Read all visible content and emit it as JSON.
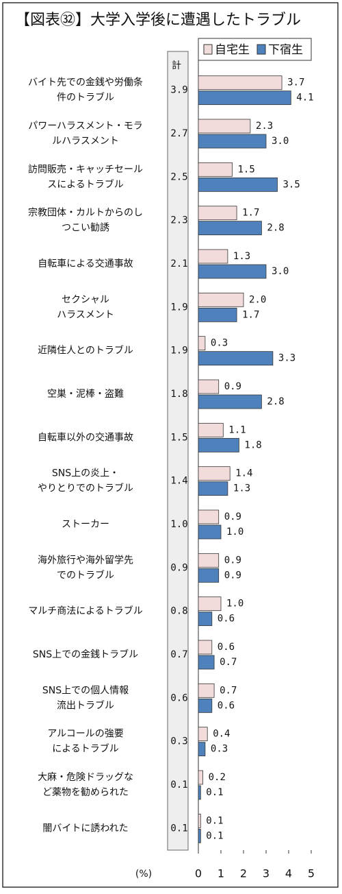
{
  "chart_data": {
    "type": "bar",
    "orientation": "horizontal",
    "title": "【図表㉜】大学入学後に遭遇したトラブル",
    "categories": [
      [
        "バイト先での金銭や労働条",
        "件のトラブル"
      ],
      [
        "パワーハラスメント・モラ",
        "ルハラスメント"
      ],
      [
        "訪問販売・キャッチセール",
        "スによるトラブル"
      ],
      [
        "宗教団体・カルトからのし",
        "つこい勧誘"
      ],
      [
        "自転車による交通事故"
      ],
      [
        "セクシャル",
        "ハラスメント"
      ],
      [
        "近隣住人とのトラブル"
      ],
      [
        "空巣・泥棒・盗難"
      ],
      [
        "自転車以外の交通事故"
      ],
      [
        "SNS上の炎上・",
        "やりとりでのトラブル"
      ],
      [
        "ストーカー"
      ],
      [
        "海外旅行や海外留学先",
        "でのトラブル"
      ],
      [
        "マルチ商法によるトラブル"
      ],
      [
        "SNS上での金銭トラブル"
      ],
      [
        "SNS上での個人情報",
        "流出トラブル"
      ],
      [
        "アルコールの強要",
        "によるトラブル"
      ],
      [
        "大麻・危険ドラッグな",
        "ど薬物を勧められた"
      ],
      [
        "闇バイトに誘われた"
      ]
    ],
    "total": {
      "label": "計",
      "values": [
        "3.9",
        "2.7",
        "2.5",
        "2.3",
        "2.1",
        "1.9",
        "1.9",
        "1.8",
        "1.5",
        "1.4",
        "1.0",
        "0.9",
        "0.8",
        "0.7",
        "0.6",
        "0.3",
        "0.1",
        "0.1"
      ]
    },
    "series": [
      {
        "name": "自宅生",
        "color": "#f2dcdb",
        "values": [
          3.7,
          2.3,
          1.5,
          1.7,
          1.3,
          2.0,
          0.3,
          0.9,
          1.1,
          1.4,
          0.9,
          0.9,
          1.0,
          0.6,
          0.7,
          0.4,
          0.2,
          0.1
        ],
        "value_labels": [
          "3.7",
          "2.3",
          "1.5",
          "1.7",
          "1.3",
          "2.0",
          "0.3",
          "0.9",
          "1.1",
          "1.4",
          "0.9",
          "0.9",
          "1.0",
          "0.6",
          "0.7",
          "0.4",
          "0.2",
          "0.1"
        ]
      },
      {
        "name": "下宿生",
        "color": "#4f81bd",
        "values": [
          4.1,
          3.0,
          3.5,
          2.8,
          3.0,
          1.7,
          3.3,
          2.8,
          1.8,
          1.3,
          1.0,
          0.9,
          0.6,
          0.7,
          0.6,
          0.3,
          0.1,
          0.1
        ],
        "value_labels": [
          "4.1",
          "3.0",
          "3.5",
          "2.8",
          "3.0",
          "1.7",
          "3.3",
          "2.8",
          "1.8",
          "1.3",
          "1.0",
          "0.9",
          "0.6",
          "0.7",
          "0.6",
          "0.3",
          "0.1",
          "0.1"
        ]
      }
    ],
    "xlim": [
      0,
      5
    ],
    "xticks": [
      0,
      1,
      2,
      3,
      4,
      5
    ],
    "x_unit": "(%)",
    "legend": "top-right"
  }
}
